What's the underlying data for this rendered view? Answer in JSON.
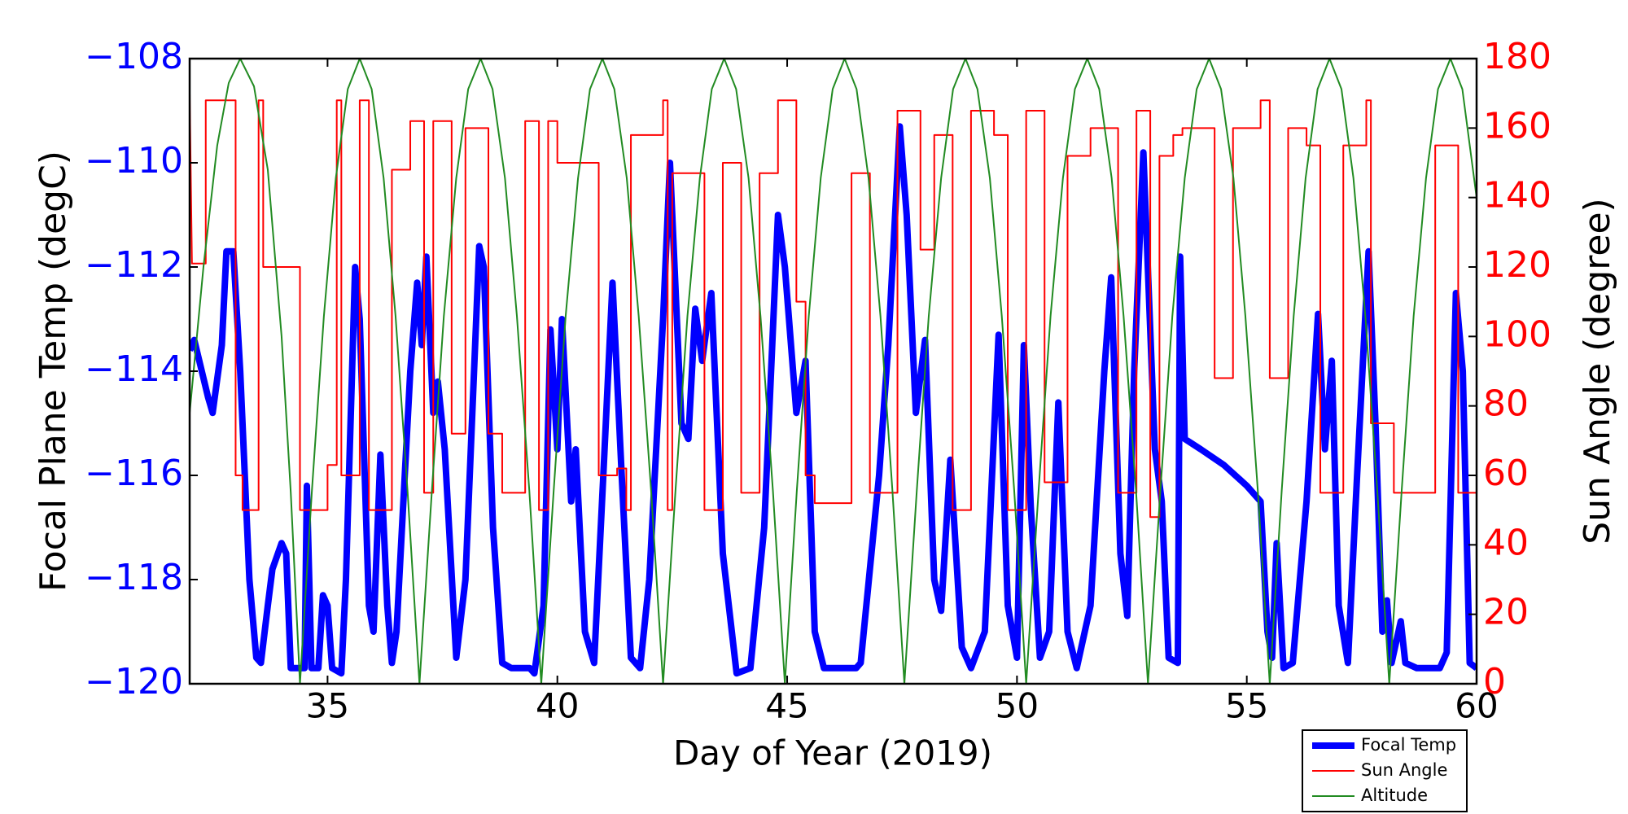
{
  "chart_data": {
    "type": "line",
    "xlabel": "Day of Year (2019)",
    "ylabel": "Focal Plane Temp (degC)",
    "y2label": "Sun Angle (degree)",
    "xlim": [
      32,
      60
    ],
    "xticks": [
      35,
      40,
      45,
      50,
      55,
      60
    ],
    "ylim": [
      -120,
      -108
    ],
    "yticks": [
      {
        "value": -120,
        "label": "−120"
      },
      {
        "value": -118,
        "label": "−118"
      },
      {
        "value": -116,
        "label": "−116"
      },
      {
        "value": -114,
        "label": "−114"
      },
      {
        "value": -112,
        "label": "−112"
      },
      {
        "value": -110,
        "label": "−110"
      },
      {
        "value": -108,
        "label": "−108"
      }
    ],
    "y2lim": [
      0,
      180
    ],
    "y2ticks": [
      0,
      20,
      40,
      60,
      80,
      100,
      120,
      140,
      160,
      180
    ],
    "ytick_color": "#0000ff",
    "y2tick_color": "#ff0000",
    "legend": "lower right",
    "series": [
      {
        "name": "Focal Temp",
        "color": "#0000ff",
        "width": 8,
        "x": [
          32.0,
          32.1,
          32.4,
          32.5,
          32.7,
          32.8,
          32.95,
          33.1,
          33.3,
          33.45,
          33.55,
          33.7,
          33.8,
          34.0,
          34.1,
          34.2,
          34.5,
          34.55,
          34.65,
          34.8,
          34.9,
          35.0,
          35.1,
          35.3,
          35.4,
          35.6,
          35.7,
          35.9,
          36.0,
          36.15,
          36.3,
          36.4,
          36.5,
          36.8,
          36.95,
          37.05,
          37.15,
          37.3,
          37.4,
          37.55,
          37.8,
          38.0,
          38.3,
          38.4,
          38.6,
          38.8,
          39.0,
          39.4,
          39.5,
          39.7,
          39.85,
          40.0,
          40.1,
          40.3,
          40.4,
          40.6,
          40.8,
          41.0,
          41.2,
          41.4,
          41.6,
          41.8,
          42.0,
          42.3,
          42.45,
          42.55,
          42.7,
          42.85,
          43.0,
          43.15,
          43.35,
          43.6,
          43.9,
          44.2,
          44.5,
          44.8,
          44.95,
          45.2,
          45.4,
          45.6,
          45.8,
          46.5,
          46.6,
          47.0,
          47.2,
          47.45,
          47.6,
          47.8,
          48.0,
          48.2,
          48.35,
          48.55,
          48.8,
          49.0,
          49.3,
          49.6,
          49.8,
          50.0,
          50.15,
          50.3,
          50.5,
          50.7,
          50.9,
          51.1,
          51.3,
          51.6,
          51.9,
          52.05,
          52.25,
          52.4,
          52.55,
          52.75,
          53.0,
          53.15,
          53.3,
          53.5,
          53.55,
          53.65,
          54.0,
          54.5,
          55.0,
          55.3,
          55.45,
          55.55,
          55.65,
          55.8,
          56.0,
          56.3,
          56.55,
          56.7,
          56.85,
          57.0,
          57.2,
          57.4,
          57.65,
          57.8,
          57.95,
          58.05,
          58.15,
          58.35,
          58.45,
          58.7,
          59.2,
          59.35,
          59.55,
          59.7,
          59.85,
          60.0
        ],
        "values": [
          -113.6,
          -113.4,
          -114.5,
          -114.8,
          -113.5,
          -111.7,
          -111.7,
          -114,
          -118,
          -119.5,
          -119.6,
          -118.5,
          -117.8,
          -117.3,
          -117.5,
          -119.7,
          -119.7,
          -116.2,
          -119.7,
          -119.7,
          -118.3,
          -118.5,
          -119.7,
          -119.8,
          -118,
          -112,
          -113,
          -118.5,
          -119,
          -115.6,
          -118.5,
          -119.6,
          -119,
          -114,
          -112.3,
          -113.5,
          -111.8,
          -114.8,
          -114.2,
          -115.5,
          -119.5,
          -118,
          -111.6,
          -112,
          -117,
          -119.6,
          -119.7,
          -119.7,
          -119.8,
          -118.5,
          -113.2,
          -115.5,
          -113,
          -116.5,
          -115.5,
          -119,
          -119.6,
          -116,
          -112.3,
          -116,
          -119.5,
          -119.7,
          -118,
          -113,
          -110,
          -112,
          -115,
          -115.3,
          -112.8,
          -113.8,
          -112.5,
          -117.5,
          -119.8,
          -119.7,
          -117,
          -111,
          -112,
          -114.8,
          -113.8,
          -119,
          -119.7,
          -119.7,
          -119.6,
          -116,
          -113.5,
          -109.3,
          -111,
          -114.8,
          -113.4,
          -118,
          -118.6,
          -115.7,
          -119.3,
          -119.7,
          -119,
          -113.3,
          -118.5,
          -119.5,
          -113.5,
          -116.6,
          -119.5,
          -119,
          -114.6,
          -119,
          -119.7,
          -118.5,
          -114,
          -112.2,
          -117.5,
          -118.7,
          -114,
          -109.8,
          -115.5,
          -116.5,
          -119.5,
          -119.6,
          -111.8,
          -115.3,
          -115.5,
          -115.8,
          -116.2,
          -116.5,
          -119,
          -119.5,
          -117.3,
          -119.7,
          -119.6,
          -116.5,
          -112.9,
          -115.5,
          -113.8,
          -118.5,
          -119.6,
          -116,
          -111.7,
          -115,
          -119,
          -118.4,
          -119.6,
          -118.8,
          -119.6,
          -119.7,
          -119.7,
          -119.4,
          -112.5,
          -114,
          -119.6,
          -119.7
        ]
      },
      {
        "name": "Sun Angle",
        "color": "#ff0000",
        "width": 2,
        "axis": "y2",
        "x": [
          32.0,
          32.05,
          32.35,
          32.35,
          33.0,
          33.0,
          33.15,
          33.15,
          33.5,
          33.5,
          33.6,
          33.6,
          34.4,
          34.4,
          35.0,
          35.0,
          35.2,
          35.2,
          35.3,
          35.3,
          35.7,
          35.7,
          35.9,
          35.9,
          36.4,
          36.4,
          36.8,
          36.8,
          37.1,
          37.1,
          37.3,
          37.3,
          37.7,
          37.7,
          38.0,
          38.0,
          38.5,
          38.5,
          38.8,
          38.8,
          39.3,
          39.3,
          39.6,
          39.6,
          39.8,
          39.8,
          40.0,
          40.0,
          40.9,
          40.9,
          41.3,
          41.3,
          41.5,
          41.5,
          41.6,
          41.6,
          42.3,
          42.3,
          42.4,
          42.4,
          42.5,
          42.5,
          43.2,
          43.2,
          43.6,
          43.6,
          44.0,
          44.0,
          44.4,
          44.4,
          44.8,
          44.8,
          45.2,
          45.2,
          45.4,
          45.4,
          45.6,
          45.6,
          46.4,
          46.4,
          46.8,
          46.8,
          47.4,
          47.4,
          47.9,
          47.9,
          48.2,
          48.2,
          48.6,
          48.6,
          49.0,
          49.0,
          49.5,
          49.5,
          49.8,
          49.8,
          50.2,
          50.2,
          50.6,
          50.6,
          51.1,
          51.1,
          51.6,
          51.6,
          52.2,
          52.2,
          52.6,
          52.6,
          52.9,
          52.9,
          53.1,
          53.1,
          53.4,
          53.4,
          53.6,
          53.6,
          54.3,
          54.3,
          54.7,
          54.7,
          55.3,
          55.3,
          55.5,
          55.5,
          55.9,
          55.9,
          56.3,
          56.3,
          56.6,
          56.6,
          57.1,
          57.1,
          57.6,
          57.6,
          57.7,
          57.7,
          58.2,
          58.2,
          59.1,
          59.1,
          59.6,
          59.6,
          60.0
        ],
        "values": [
          170,
          121,
          121,
          168,
          168,
          60,
          60,
          50,
          50,
          168,
          168,
          120,
          120,
          50,
          50,
          63,
          63,
          168,
          168,
          60,
          60,
          168,
          168,
          50,
          50,
          148,
          148,
          162,
          162,
          55,
          55,
          162,
          162,
          72,
          72,
          160,
          160,
          72,
          72,
          55,
          55,
          162,
          162,
          50,
          50,
          162,
          162,
          150,
          150,
          60,
          60,
          62,
          62,
          50,
          50,
          158,
          158,
          168,
          168,
          50,
          50,
          147,
          147,
          50,
          50,
          150,
          150,
          55,
          55,
          147,
          147,
          168,
          168,
          110,
          110,
          60,
          60,
          52,
          52,
          147,
          147,
          55,
          55,
          165,
          165,
          125,
          125,
          158,
          158,
          50,
          50,
          165,
          165,
          158,
          158,
          50,
          50,
          165,
          165,
          58,
          58,
          152,
          152,
          160,
          160,
          55,
          55,
          165,
          165,
          48,
          48,
          152,
          152,
          158,
          158,
          160,
          160,
          88,
          88,
          160,
          160,
          168,
          168,
          88,
          88,
          160,
          160,
          155,
          155,
          55,
          55,
          155,
          155,
          168,
          168,
          75,
          75,
          55,
          55,
          155,
          155,
          55,
          55
        ]
      },
      {
        "name": "Altitude",
        "color": "#228b22",
        "width": 2,
        "axis": "y2",
        "x": [
          32.0,
          32.3,
          32.6,
          32.85,
          33.1,
          33.4,
          33.7,
          34.0,
          34.2,
          34.4,
          34.66,
          34.92,
          35.18,
          35.44,
          35.7,
          35.96,
          36.22,
          36.48,
          36.74,
          37.0,
          37.27,
          37.53,
          37.8,
          38.06,
          38.33,
          38.59,
          38.86,
          39.12,
          39.39,
          39.65,
          39.92,
          40.18,
          40.45,
          40.71,
          40.98,
          41.24,
          41.51,
          41.77,
          42.04,
          42.3,
          42.57,
          42.83,
          43.1,
          43.36,
          43.63,
          43.89,
          44.16,
          44.42,
          44.69,
          44.95,
          45.21,
          45.47,
          45.73,
          45.99,
          46.25,
          46.51,
          46.77,
          47.03,
          47.29,
          47.55,
          47.82,
          48.08,
          48.35,
          48.61,
          48.88,
          49.14,
          49.41,
          49.67,
          49.94,
          50.2,
          50.47,
          50.73,
          51.0,
          51.26,
          51.53,
          51.79,
          52.06,
          52.32,
          52.59,
          52.85,
          53.12,
          53.38,
          53.65,
          53.91,
          54.18,
          54.44,
          54.71,
          54.97,
          55.24,
          55.5,
          55.76,
          56.02,
          56.28,
          56.54,
          56.8,
          57.06,
          57.32,
          57.58,
          57.84,
          58.1,
          58.37,
          58.63,
          58.9,
          59.16,
          59.43,
          59.69,
          60.0
        ],
        "values": [
          78,
          120,
          155,
          173,
          180,
          172,
          148,
          100,
          55,
          0,
          55.6,
          105.8,
          145.6,
          171.2,
          180,
          171.2,
          145.6,
          105.8,
          55.6,
          0,
          55.6,
          105.8,
          145.6,
          171.2,
          180,
          171.2,
          145.6,
          105.8,
          55.6,
          0,
          55.6,
          105.8,
          145.6,
          171.2,
          180,
          171.2,
          145.6,
          105.8,
          55.6,
          0,
          55.6,
          105.8,
          145.6,
          171.2,
          180,
          171.2,
          145.6,
          105.8,
          55.6,
          0,
          55.6,
          105.8,
          145.6,
          171.2,
          180,
          171.2,
          145.6,
          105.8,
          55.6,
          0,
          55.6,
          105.8,
          145.6,
          171.2,
          180,
          171.2,
          145.6,
          105.8,
          55.6,
          0,
          55.6,
          105.8,
          145.6,
          171.2,
          180,
          171.2,
          145.6,
          105.8,
          55.6,
          0,
          55.6,
          105.8,
          145.6,
          171.2,
          180,
          171.2,
          145.6,
          105.8,
          55.6,
          0,
          55.6,
          105.8,
          145.6,
          171.2,
          180,
          171.2,
          145.6,
          105.8,
          55.6,
          0,
          55.6,
          105.8,
          145.6,
          171.2,
          180,
          171.2,
          140
        ]
      }
    ]
  }
}
